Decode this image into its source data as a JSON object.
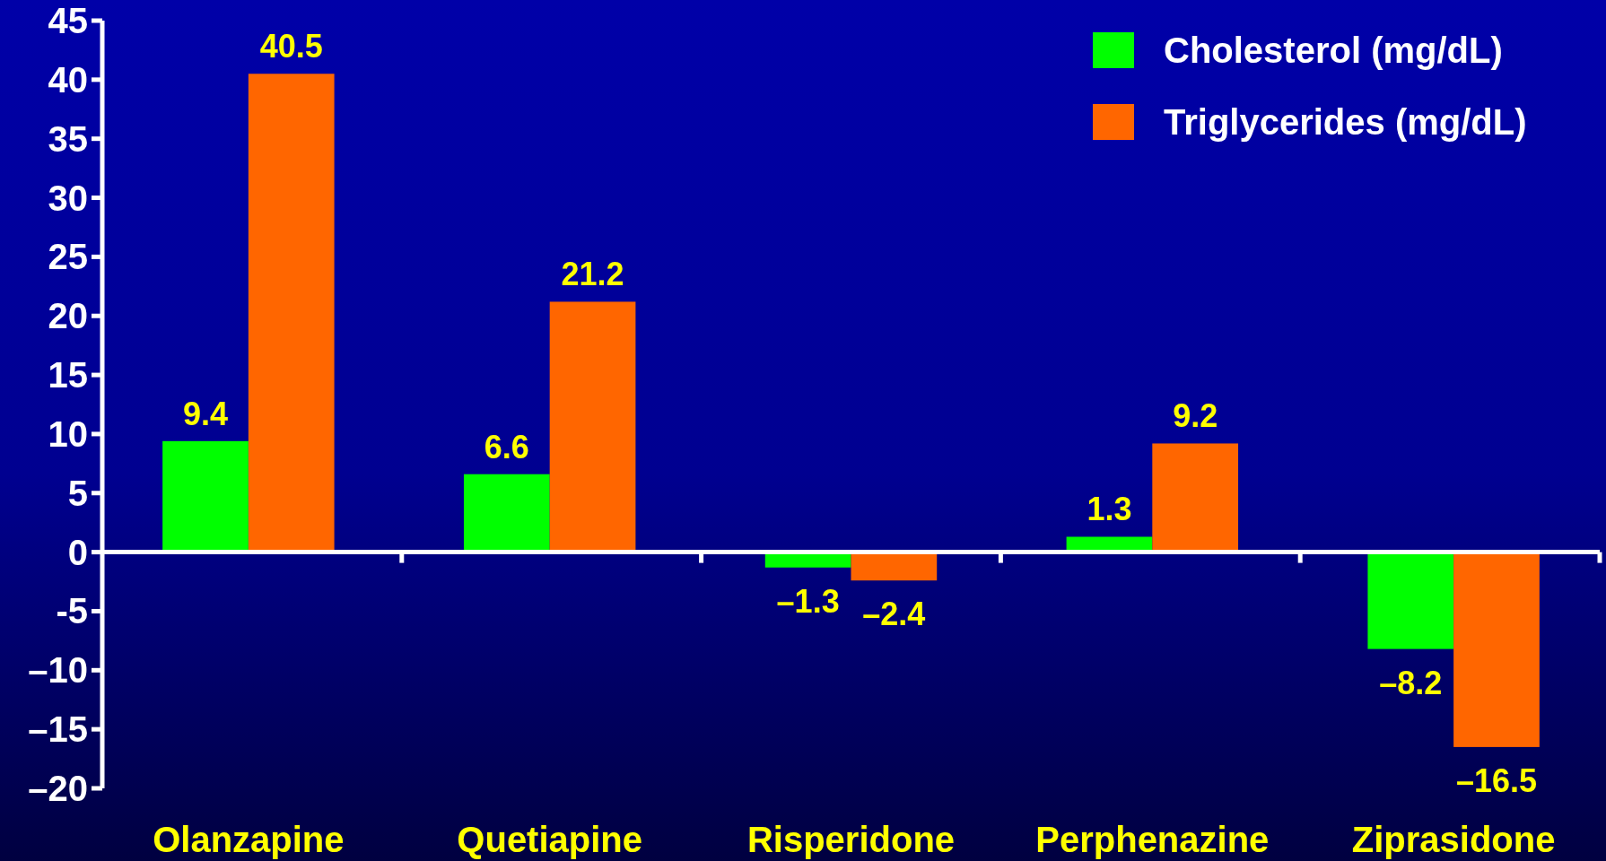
{
  "chart_data": {
    "type": "bar",
    "categories": [
      "Olanzapine",
      "Quetiapine",
      "Risperidone",
      "Perphenazine",
      "Ziprasidone"
    ],
    "series": [
      {
        "name": "Cholesterol (mg/dL)",
        "color": "#00ff00",
        "values": [
          9.4,
          6.6,
          -1.3,
          1.3,
          -8.2
        ],
        "value_labels": [
          "9.4",
          "6.6",
          "–1.3",
          "1.3",
          "–8.2"
        ]
      },
      {
        "name": "Triglycerides (mg/dL)",
        "color": "#ff6600",
        "values": [
          40.5,
          21.2,
          -2.4,
          9.2,
          -16.5
        ],
        "value_labels": [
          "40.5",
          "21.2",
          "–2.4",
          "9.2",
          "–16.5"
        ]
      }
    ],
    "ylim": [
      -20,
      45
    ],
    "yticks": [
      45,
      40,
      35,
      30,
      25,
      20,
      15,
      10,
      5,
      0,
      {
        "value": -5,
        "label": "-5"
      },
      {
        "value": -10,
        "label": "–10"
      },
      {
        "value": -15,
        "label": "–15"
      },
      {
        "value": -20,
        "label": "–20"
      }
    ],
    "legend": "top right"
  }
}
